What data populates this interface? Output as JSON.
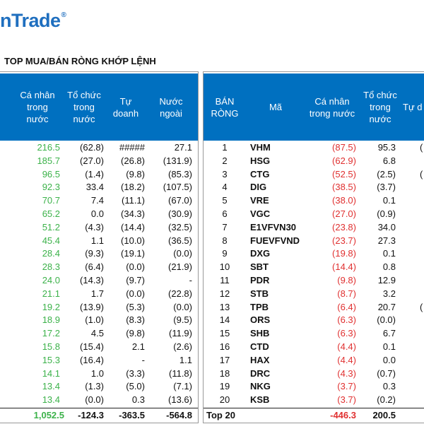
{
  "logo": {
    "text": "nTrade",
    "mark": "®"
  },
  "title": "TOP MUA/BÁN RÒNG KHỚP LỆNH",
  "left_table": {
    "headers": [
      "Cá nhân\ntrong\nnước",
      "Tổ chức\ntrong\nnước",
      "Tự\ndoanh",
      "Nước\nngoài"
    ],
    "rows": [
      [
        "216.5",
        "(62.8)",
        "#####",
        "27.1"
      ],
      [
        "185.7",
        "(27.0)",
        "(26.8)",
        "(131.9)"
      ],
      [
        "96.5",
        "(1.4)",
        "(9.8)",
        "(85.3)"
      ],
      [
        "92.3",
        "33.4",
        "(18.2)",
        "(107.5)"
      ],
      [
        "70.7",
        "7.4",
        "(11.1)",
        "(67.0)"
      ],
      [
        "65.2",
        "0.0",
        "(34.3)",
        "(30.9)"
      ],
      [
        "51.2",
        "(4.3)",
        "(14.4)",
        "(32.5)"
      ],
      [
        "45.4",
        "1.1",
        "(10.0)",
        "(36.5)"
      ],
      [
        "28.4",
        "(9.3)",
        "(19.1)",
        "(0.0)"
      ],
      [
        "28.3",
        "(6.4)",
        "(0.0)",
        "(21.9)"
      ],
      [
        "24.0",
        "(14.3)",
        "(9.7)",
        "-"
      ],
      [
        "21.1",
        "1.7",
        "(0.0)",
        "(22.8)"
      ],
      [
        "19.2",
        "(13.9)",
        "(5.3)",
        "(0.0)"
      ],
      [
        "18.9",
        "(1.0)",
        "(8.3)",
        "(9.5)"
      ],
      [
        "17.2",
        "4.5",
        "(9.8)",
        "(11.9)"
      ],
      [
        "15.8",
        "(15.4)",
        "2.1",
        "(2.6)"
      ],
      [
        "15.3",
        "(16.4)",
        "-",
        "1.1"
      ],
      [
        "14.1",
        "1.0",
        "(3.3)",
        "(11.8)"
      ],
      [
        "13.4",
        "(1.3)",
        "(5.0)",
        "(7.1)"
      ],
      [
        "13.4",
        "(0.0)",
        "0.3",
        "(13.6)"
      ]
    ],
    "total": [
      "1,052.5",
      "-124.3",
      "-363.5",
      "-564.8"
    ]
  },
  "right_table": {
    "headers": [
      "BÁN\nRÒNG",
      "Mã",
      "Cá nhân\ntrong nước",
      "Tổ chức\ntrong\nnước",
      "Tự d"
    ],
    "rows": [
      [
        "1",
        "VHM",
        "(87.5)",
        "95.3",
        "("
      ],
      [
        "2",
        "HSG",
        "(62.9)",
        "6.8",
        ""
      ],
      [
        "3",
        "CTG",
        "(52.5)",
        "(2.5)",
        "("
      ],
      [
        "4",
        "DIG",
        "(38.5)",
        "(3.7)",
        ""
      ],
      [
        "5",
        "VRE",
        "(38.0)",
        "0.1",
        ""
      ],
      [
        "6",
        "VGC",
        "(27.0)",
        "(0.9)",
        ""
      ],
      [
        "7",
        "E1VFVN30",
        "(23.8)",
        "34.0",
        ""
      ],
      [
        "8",
        "FUEVFVND",
        "(23.7)",
        "27.3",
        ""
      ],
      [
        "9",
        "DXG",
        "(19.8)",
        "0.1",
        ""
      ],
      [
        "10",
        "SBT",
        "(14.4)",
        "0.8",
        ""
      ],
      [
        "11",
        "PDR",
        "(9.8)",
        "12.9",
        ""
      ],
      [
        "12",
        "STB",
        "(8.7)",
        "3.2",
        ""
      ],
      [
        "13",
        "TPB",
        "(6.4)",
        "20.7",
        "("
      ],
      [
        "14",
        "ORS",
        "(6.3)",
        "(0.0)",
        ""
      ],
      [
        "15",
        "SHB",
        "(6.3)",
        "6.7",
        ""
      ],
      [
        "16",
        "CTD",
        "(4.4)",
        "0.1",
        ""
      ],
      [
        "17",
        "HAX",
        "(4.4)",
        "0.0",
        ""
      ],
      [
        "18",
        "DRC",
        "(4.3)",
        "(0.7)",
        ""
      ],
      [
        "19",
        "NKG",
        "(3.7)",
        "0.3",
        ""
      ],
      [
        "20",
        "KSB",
        "(3.7)",
        "(0.2)",
        ""
      ]
    ],
    "total": [
      "Top 20",
      "-446.3",
      "200.5"
    ]
  },
  "colors": {
    "header_bg": "#0070c0",
    "positive": "#3cb24a",
    "negative": "#e03030",
    "brand": "#1f6fbf"
  }
}
